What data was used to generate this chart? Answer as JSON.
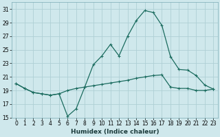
{
  "xlabel": "Humidex (Indice chaleur)",
  "bg_color": "#cfe8ec",
  "grid_color": "#aecfd5",
  "line_color": "#1a6b5e",
  "xlim": [
    -0.5,
    23.5
  ],
  "ylim": [
    15,
    32
  ],
  "yticks": [
    15,
    17,
    19,
    21,
    23,
    25,
    27,
    29,
    31
  ],
  "xticks": [
    0,
    1,
    2,
    3,
    4,
    5,
    6,
    7,
    8,
    9,
    10,
    11,
    12,
    13,
    14,
    15,
    16,
    17,
    18,
    19,
    20,
    21,
    22,
    23
  ],
  "line1_x": [
    0,
    1,
    2,
    3,
    4,
    5,
    6,
    7,
    8,
    9,
    10,
    11,
    12,
    13,
    14,
    15,
    16,
    17,
    18,
    19,
    20,
    21,
    22,
    23
  ],
  "line1_y": [
    20.0,
    19.3,
    18.7,
    18.5,
    18.3,
    18.5,
    15.2,
    16.3,
    19.5,
    22.8,
    24.1,
    25.8,
    24.1,
    27.0,
    29.3,
    30.8,
    30.5,
    28.6,
    24.0,
    22.1,
    22.0,
    21.2,
    19.8,
    19.2
  ],
  "line2_x": [
    0,
    1,
    2,
    3,
    4,
    5,
    6,
    7,
    8,
    9,
    10,
    11,
    12,
    13,
    14,
    15,
    16,
    17,
    18,
    19,
    20,
    21,
    22,
    23
  ],
  "line2_y": [
    20.0,
    19.3,
    18.7,
    18.5,
    18.3,
    18.5,
    19.0,
    19.3,
    19.5,
    19.7,
    19.9,
    20.1,
    20.3,
    20.5,
    20.8,
    21.0,
    21.2,
    21.3,
    19.5,
    19.3,
    19.3,
    19.0,
    19.0,
    19.2
  ]
}
